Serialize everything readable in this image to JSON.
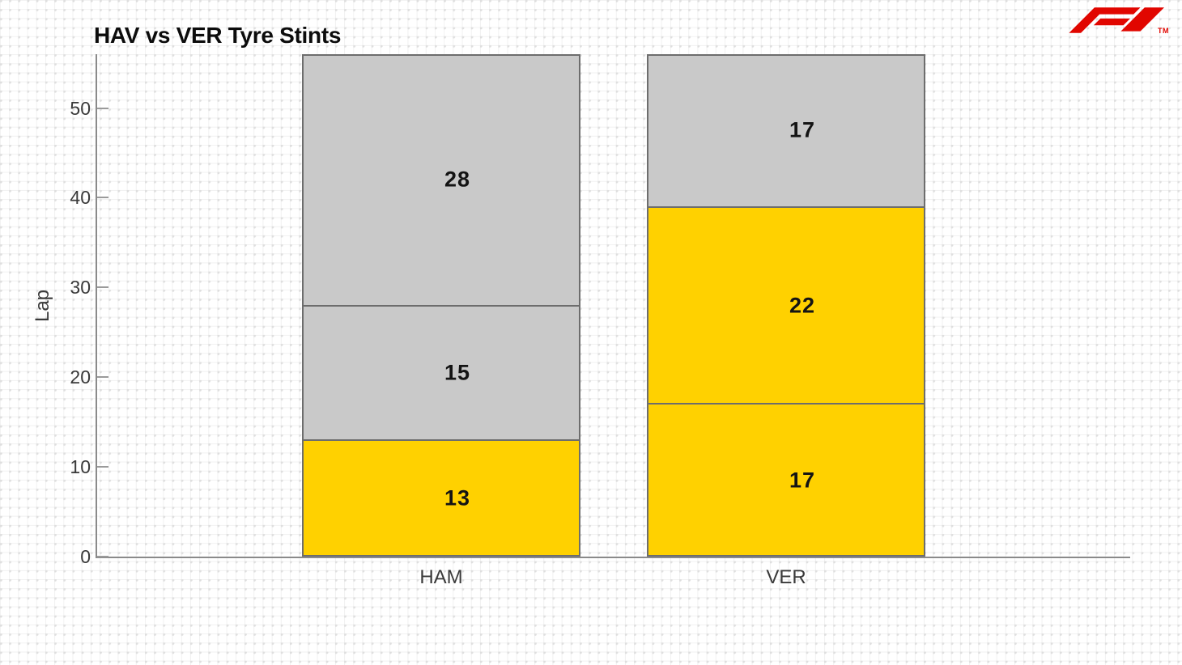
{
  "header": {
    "brand": {
      "name": "Formula 1",
      "trademark": "TM",
      "color": "#E10600"
    }
  },
  "chart_data": {
    "type": "bar",
    "stacked": true,
    "title": "HAV vs VER Tyre Stints",
    "xlabel": "",
    "ylabel": "Lap",
    "ylim": [
      0,
      56
    ],
    "yticks": [
      0,
      10,
      20,
      30,
      40,
      50
    ],
    "grid": false,
    "legend": "none",
    "categories": [
      "HAM",
      "VER"
    ],
    "bars": [
      {
        "category": "HAM",
        "total_laps": 56,
        "stints": [
          {
            "laps": 13,
            "color": "#FFD100"
          },
          {
            "laps": 15,
            "color": "#C9C9C9"
          },
          {
            "laps": 28,
            "color": "#C9C9C9"
          }
        ]
      },
      {
        "category": "VER",
        "total_laps": 56,
        "stints": [
          {
            "laps": 17,
            "color": "#FFD100"
          },
          {
            "laps": 22,
            "color": "#FFD100"
          },
          {
            "laps": 17,
            "color": "#C9C9C9"
          }
        ]
      }
    ],
    "colors": {
      "yellow_stint": "#FFD100",
      "grey_stint": "#C9C9C9",
      "bar_edge": "#6d6d6d",
      "axis": "#8a8a8a"
    }
  }
}
